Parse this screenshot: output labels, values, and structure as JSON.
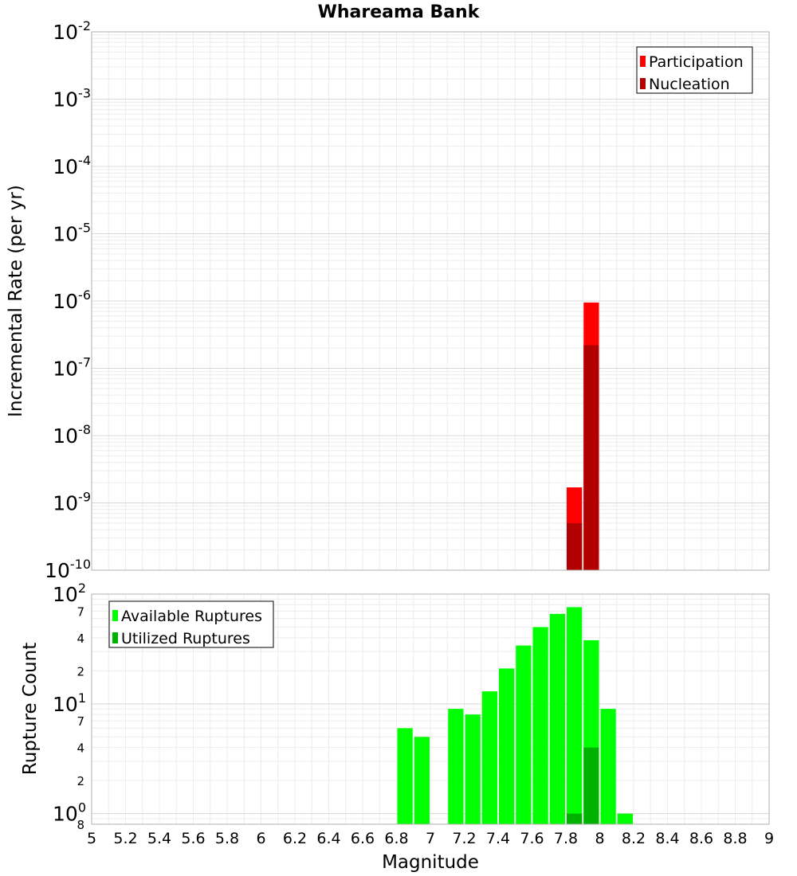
{
  "title": "Whareama Bank",
  "chart_data": [
    {
      "type": "bar",
      "ylabel": "Incremental Rate (per yr)",
      "yscale": "log",
      "ylim": [
        1e-10,
        0.01
      ],
      "xlim": [
        5,
        9
      ],
      "y_ticks": [
        {
          "base": "10",
          "exp": "-2"
        },
        {
          "base": "10",
          "exp": "-3"
        },
        {
          "base": "10",
          "exp": "-4"
        },
        {
          "base": "10",
          "exp": "-5"
        },
        {
          "base": "10",
          "exp": "-6"
        },
        {
          "base": "10",
          "exp": "-7"
        },
        {
          "base": "10",
          "exp": "-8"
        },
        {
          "base": "10",
          "exp": "-9"
        },
        {
          "base": "10",
          "exp": "-10"
        }
      ],
      "grid": true,
      "legend_position": "top-right",
      "series": [
        {
          "name": "Participation",
          "color": "#ff0000",
          "x": [
            7.85,
            7.95
          ],
          "values": [
            1.7e-09,
            9.5e-07
          ]
        },
        {
          "name": "Nucleation",
          "color": "#b20000",
          "x": [
            7.85,
            7.95
          ],
          "values": [
            5e-10,
            2.2e-07
          ]
        }
      ]
    },
    {
      "type": "bar",
      "ylabel": "Rupture Count",
      "yscale": "log",
      "ylim": [
        0.8,
        100
      ],
      "xlim": [
        5,
        9
      ],
      "xlabel": "Magnitude",
      "y_ticks": [
        {
          "base": "10",
          "exp": "2"
        },
        {
          "base": "10",
          "exp": "1"
        },
        {
          "base": "10",
          "exp": "0"
        }
      ],
      "y_minor_labels": [
        "7",
        "4",
        "2",
        "7",
        "4",
        "2",
        "8"
      ],
      "x_ticks": [
        "5",
        "5.2",
        "5.4",
        "5.6",
        "5.8",
        "6",
        "6.2",
        "6.4",
        "6.6",
        "6.8",
        "7",
        "7.2",
        "7.4",
        "7.6",
        "7.8",
        "8",
        "8.2",
        "8.4",
        "8.6",
        "8.8",
        "9"
      ],
      "grid": true,
      "legend_position": "top-left",
      "series": [
        {
          "name": "Available Ruptures",
          "color": "#00ff00",
          "x": [
            6.85,
            6.95,
            7.15,
            7.25,
            7.35,
            7.45,
            7.55,
            7.65,
            7.75,
            7.85,
            7.95,
            8.05,
            8.15
          ],
          "values": [
            6,
            5,
            9,
            8,
            13,
            21,
            34,
            50,
            66,
            76,
            38,
            9,
            1
          ]
        },
        {
          "name": "Utilized Ruptures",
          "color": "#00b200",
          "x": [
            7.85,
            7.95
          ],
          "values": [
            1,
            4
          ]
        }
      ]
    }
  ]
}
